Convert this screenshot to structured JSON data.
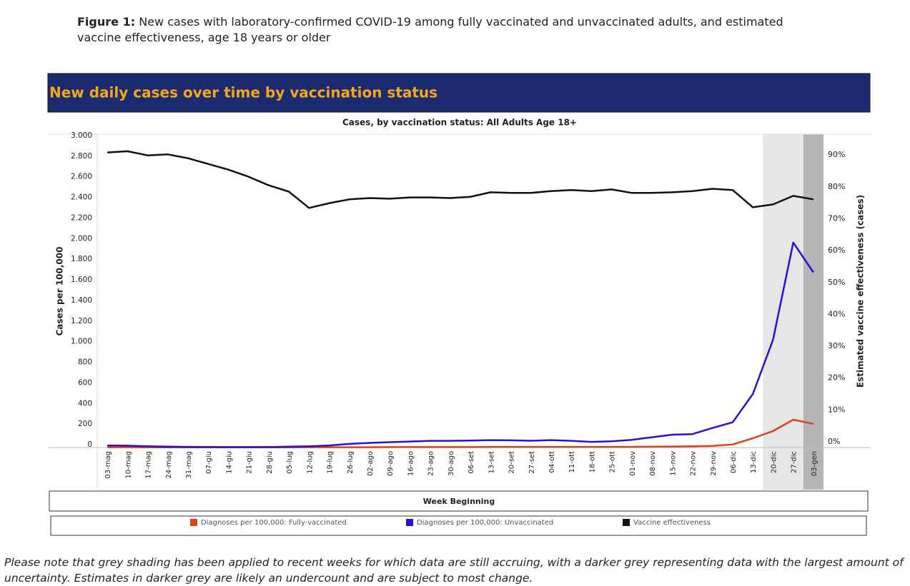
{
  "caption": {
    "label": "Figure 1:",
    "text": "New cases with laboratory-confirmed COVID-19 among fully vaccinated and unvaccinated adults, and estimated vaccine effectiveness, age 18 years or older"
  },
  "note": "Please note that grey shading has been applied to recent weeks for which data are still accruing, with a darker grey representing data with the largest amount of uncertainty. Estimates in darker grey are likely an undercount and are subject to most change.",
  "chart_data": {
    "type": "line",
    "title": "New daily cases over time by vaccination status",
    "subtitle": "Cases, by vaccination status: All Adults Age 18+",
    "x_label": "Week Beginning",
    "y_label": "Cases per 100,000",
    "y2_label": "Estimated vaccine effectiveness (cases)",
    "categories": [
      "03-mag",
      "10-mag",
      "17-mag",
      "24-mag",
      "31-mag",
      "07-giu",
      "14-giu",
      "21-giu",
      "28-giu",
      "05-lug",
      "12-lug",
      "19-lug",
      "26-lug",
      "02-ago",
      "09-ago",
      "16-ago",
      "23-ago",
      "30-ago",
      "06-set",
      "13-set",
      "20-set",
      "27-set",
      "04-ott",
      "11-ott",
      "18-ott",
      "25-ott",
      "01-nov",
      "08-nov",
      "15-nov",
      "22-nov",
      "29-nov",
      "06-dic",
      "13-dic",
      "20-dic",
      "27-dic",
      "03-gen"
    ],
    "series": [
      {
        "name": "Diagnoses per 100,000: Fully-vaccinated",
        "color": "#d9441c",
        "axis": "y",
        "values": [
          3,
          3,
          2,
          2,
          2,
          2,
          2,
          2,
          2,
          2,
          3,
          3,
          3,
          3,
          4,
          4,
          4,
          4,
          4,
          5,
          5,
          5,
          5,
          5,
          5,
          5,
          6,
          8,
          10,
          12,
          16,
          30,
          90,
          160,
          270,
          230
        ]
      },
      {
        "name": "Diagnoses per 100,000: Unvaccinated",
        "color": "#2a0fd8",
        "axis": "y",
        "values": [
          20,
          18,
          12,
          8,
          6,
          5,
          4,
          4,
          5,
          8,
          12,
          20,
          35,
          45,
          52,
          58,
          65,
          65,
          68,
          72,
          70,
          66,
          72,
          65,
          55,
          60,
          75,
          100,
          125,
          130,
          190,
          245,
          520,
          1046,
          1990,
          1700
        ]
      },
      {
        "name": "Vaccine effectiveness",
        "color": "#111111",
        "axis": "y2",
        "values": [
          92.6,
          93,
          91.7,
          92,
          90.8,
          89,
          87.2,
          85,
          82.3,
          80.3,
          75.2,
          76.7,
          77.9,
          78.3,
          78.1,
          78.5,
          78.5,
          78.3,
          78.7,
          80.1,
          79.9,
          79.9,
          80.5,
          80.8,
          80.5,
          81,
          79.9,
          79.9,
          80.1,
          80.5,
          81.2,
          80.8,
          75.4,
          76.3,
          79,
          77.9
        ]
      }
    ],
    "shading": [
      {
        "from": "20-dic",
        "to": "27-dic",
        "color": "#e6e6e6"
      },
      {
        "from": "03-gen",
        "to": "03-gen",
        "color": "#b5b5b5"
      }
    ],
    "ylim": [
      0,
      3000
    ],
    "yticks": [
      0,
      200,
      400,
      600,
      800,
      {
        "value": 1000,
        "label": "1.000"
      },
      {
        "value": 1200,
        "label": "1.200"
      },
      {
        "value": 1400,
        "label": "1.400"
      },
      {
        "value": 1600,
        "label": "1.600"
      },
      {
        "value": 1800,
        "label": "1.800"
      },
      {
        "value": 2000,
        "label": "2.000"
      },
      {
        "value": 2200,
        "label": "2.200"
      },
      {
        "value": 2400,
        "label": "2.400"
      },
      {
        "value": 2600,
        "label": "2.600"
      },
      {
        "value": 2800,
        "label": "2.800"
      },
      {
        "value": 3000,
        "label": "3.000"
      }
    ],
    "y2lim": [
      0,
      97
    ],
    "y2ticks": [
      {
        "value": 0,
        "label": "0%"
      },
      {
        "value": 10,
        "label": "10%"
      },
      {
        "value": 20,
        "label": "20%"
      },
      {
        "value": 30,
        "label": "30%"
      },
      {
        "value": 40,
        "label": "40%"
      },
      {
        "value": 50,
        "label": "50%"
      },
      {
        "value": 60,
        "label": "60%"
      },
      {
        "value": 70,
        "label": "70%"
      },
      {
        "value": 80,
        "label": "80%"
      },
      {
        "value": 90,
        "label": "90%"
      }
    ],
    "grid": false
  }
}
